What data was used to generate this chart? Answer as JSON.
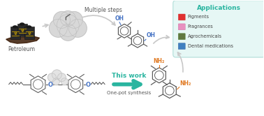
{
  "background_color": "#ffffff",
  "applications_box_color": "#e6f7f5",
  "applications_box_edge_color": "#b0ddd8",
  "applications_title": "Applications",
  "applications_title_color": "#2ab5a0",
  "applications_items": [
    "Pigments",
    "Fragrances",
    "Agrochemicals",
    "Dental medications"
  ],
  "applications_item_color": "#444444",
  "multiple_steps_text": "Multiple steps",
  "multiple_steps_color": "#555555",
  "this_work_text": "This work",
  "this_work_color": "#2ab5a0",
  "one_pot_text": "One-pot synthesis",
  "one_pot_color": "#555555",
  "petroleum_text": "Petroleum",
  "petroleum_color": "#555555",
  "oh_color": "#4472c4",
  "nh2_color": "#e07820",
  "oxygen_color": "#4472c4",
  "struct_color": "#555555",
  "arrow_color": "#c8c8c8",
  "teal_arrow_color": "#2ab5a0",
  "cloud_color": "#d8d8d8",
  "cloud_edge_color": "#bbbbbb",
  "barrel_color": "#2a2a2a",
  "barrel_stripe": "#c8a000",
  "oil_color": "#3a1a05",
  "catalyst_color": "#e0e0e0",
  "catalyst_edge": "#bbbbbb"
}
